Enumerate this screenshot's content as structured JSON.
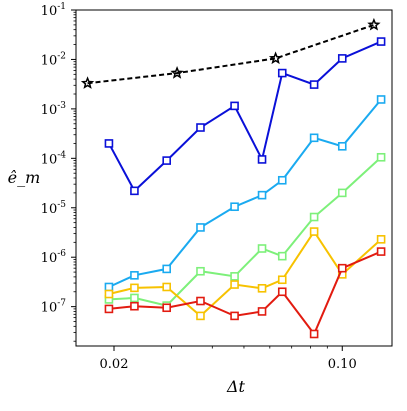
{
  "chart_data": {
    "type": "line",
    "xlabel": "Δt",
    "ylabel": "ê_m",
    "xscale": "log",
    "yscale": "log",
    "xlim": [
      0.0153,
      0.142
    ],
    "ylim": [
      1.6e-08,
      0.1
    ],
    "grid": false,
    "x_ticks": [
      {
        "value": 0.02,
        "label": "0.02"
      },
      {
        "value": 0.1,
        "label": "0.10"
      }
    ],
    "y_ticks": [
      {
        "value": 0.1,
        "base": "10",
        "exp": "-1"
      },
      {
        "value": 0.01,
        "base": "10",
        "exp": "-2"
      },
      {
        "value": 0.001,
        "base": "10",
        "exp": "-3"
      },
      {
        "value": 0.0001,
        "base": "10",
        "exp": "-4"
      },
      {
        "value": 1e-05,
        "base": "10",
        "exp": "-5"
      },
      {
        "value": 1e-06,
        "base": "10",
        "exp": "-6"
      },
      {
        "value": 1e-07,
        "base": "10",
        "exp": "-7"
      }
    ],
    "series": [
      {
        "color": "#000000",
        "marker": "star",
        "dash": true,
        "x": [
          0.0166,
          0.0312,
          0.0625,
          0.125
        ],
        "y": [
          0.0033,
          0.0053,
          0.0105,
          0.05
        ]
      },
      {
        "color": "#0a10d8",
        "marker": "square",
        "x": [
          0.0193,
          0.0231,
          0.029,
          0.0368,
          0.0468,
          0.0568,
          0.0655,
          0.082,
          0.1,
          0.1315
        ],
        "y": [
          0.0002,
          2.2e-05,
          9e-05,
          0.00042,
          0.00115,
          9.5e-05,
          0.0053,
          0.0031,
          0.0105,
          0.023
        ]
      },
      {
        "color": "#1aaaf0",
        "marker": "square",
        "x": [
          0.0193,
          0.0231,
          0.029,
          0.0368,
          0.0468,
          0.0568,
          0.0655,
          0.082,
          0.1,
          0.1315
        ],
        "y": [
          2.5e-07,
          4.3e-07,
          5.8e-07,
          4e-06,
          1.05e-05,
          1.8e-05,
          3.6e-05,
          0.00026,
          0.000175,
          0.00155
        ]
      },
      {
        "color": "#7df07a",
        "marker": "square",
        "x": [
          0.0193,
          0.0231,
          0.029,
          0.0368,
          0.0468,
          0.0568,
          0.0655,
          0.082,
          0.1,
          0.1315
        ],
        "y": [
          1.4e-07,
          1.5e-07,
          1.05e-07,
          5.2e-07,
          4.1e-07,
          1.5e-06,
          1.05e-06,
          6.5e-06,
          2e-05,
          0.000105
        ]
      },
      {
        "color": "#f7c200",
        "marker": "square",
        "x": [
          0.0193,
          0.0231,
          0.029,
          0.0368,
          0.0468,
          0.0568,
          0.0655,
          0.082,
          0.1,
          0.1315
        ],
        "y": [
          1.8e-07,
          2.4e-07,
          2.5e-07,
          6.5e-08,
          2.8e-07,
          2.35e-07,
          3.5e-07,
          3.3e-06,
          4.5e-07,
          2.3e-06
        ]
      },
      {
        "color": "#e21b10",
        "marker": "square",
        "x": [
          0.0193,
          0.0231,
          0.029,
          0.0368,
          0.0468,
          0.0568,
          0.0655,
          0.082,
          0.1,
          0.1315
        ],
        "y": [
          9e-08,
          1.02e-07,
          9.5e-08,
          1.3e-07,
          6.5e-08,
          8e-08,
          2e-07,
          2.8e-08,
          6e-07,
          1.3e-06
        ]
      }
    ]
  }
}
